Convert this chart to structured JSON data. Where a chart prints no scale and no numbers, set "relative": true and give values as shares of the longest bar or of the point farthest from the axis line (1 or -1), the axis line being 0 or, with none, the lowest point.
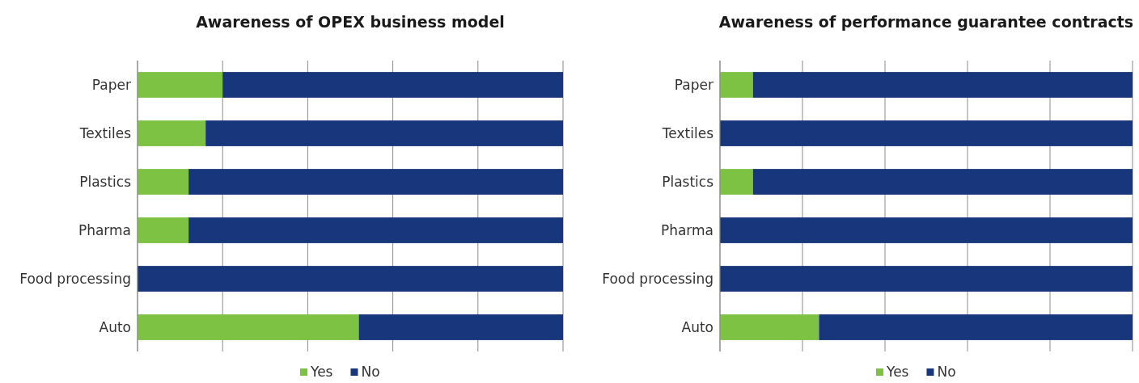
{
  "chart_data": [
    {
      "type": "bar",
      "title": "Awareness of OPEX business model",
      "orientation": "horizontal",
      "stacked": true,
      "relative": true,
      "grid": "x",
      "legend": "bottom",
      "categories": [
        "Paper",
        "Textiles",
        "Plastics",
        "Pharma",
        "Food processing",
        "Auto"
      ],
      "series": [
        {
          "name": "Yes",
          "color": "#7dc242",
          "values": [
            0.2,
            0.16,
            0.12,
            0.12,
            0,
            0.52
          ]
        },
        {
          "name": "No",
          "color": "#17367c",
          "values": [
            0.8,
            0.84,
            0.88,
            0.88,
            1,
            0.48
          ]
        }
      ]
    },
    {
      "type": "bar",
      "title": "Awareness of performance guarantee contracts",
      "orientation": "horizontal",
      "stacked": true,
      "relative": true,
      "grid": "x",
      "legend": "bottom",
      "categories": [
        "Paper",
        "Textiles",
        "Plastics",
        "Pharma",
        "Food processing",
        "Auto"
      ],
      "series": [
        {
          "name": "Yes",
          "color": "#7dc242",
          "values": [
            0.08,
            0,
            0.08,
            0,
            0,
            0.24
          ]
        },
        {
          "name": "No",
          "color": "#17367c",
          "values": [
            0.92,
            1,
            0.92,
            1,
            1,
            0.76
          ]
        }
      ]
    }
  ]
}
